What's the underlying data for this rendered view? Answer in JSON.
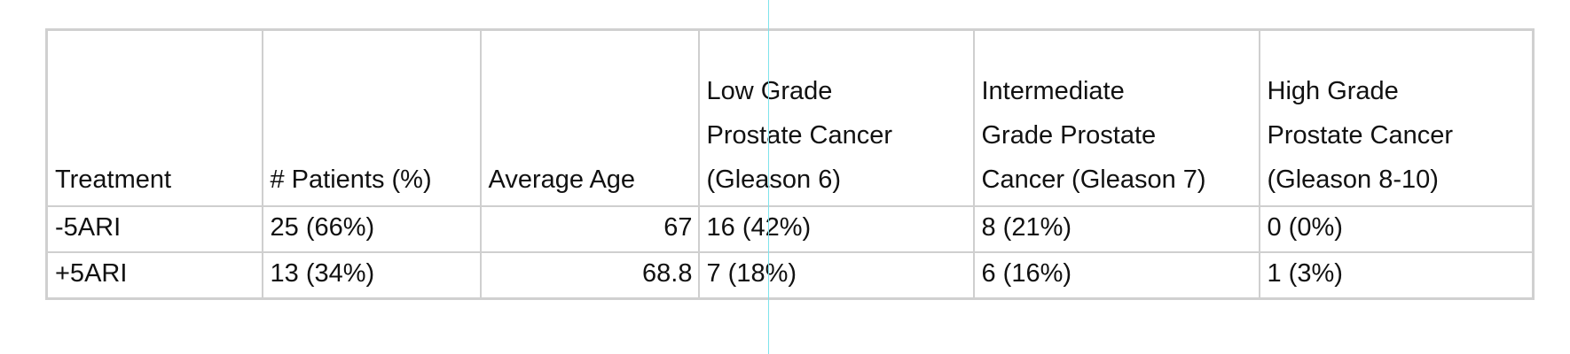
{
  "table": {
    "header": [
      "Treatment",
      "# Patients (%)",
      "Average Age",
      "Low Grade\nProstate Cancer\n(Gleason 6)",
      "Intermediate\nGrade Prostate\nCancer (Gleason 7)",
      "High Grade\nProstate Cancer\n(Gleason 8-10)"
    ],
    "rows": [
      [
        "-5ARI",
        "25 (66%)",
        67,
        "16 (42%)",
        "8 (21%)",
        "0 (0%)"
      ],
      [
        "+5ARI",
        "13 (34%)",
        68.8,
        "7 (18%)",
        "6 (16%)",
        "1 (3%)"
      ]
    ]
  }
}
